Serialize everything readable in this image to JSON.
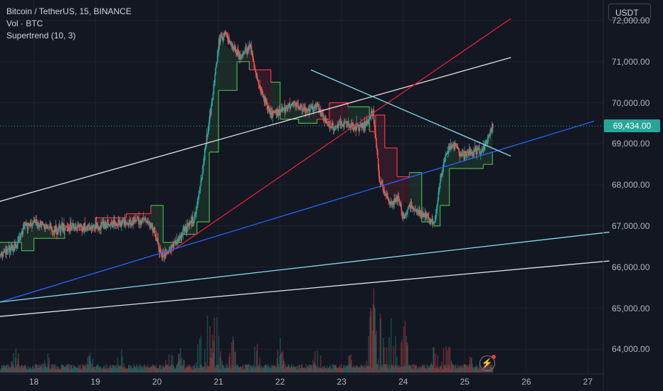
{
  "legend": {
    "symbol": "Bitcoin / TetherUS, 15, BINANCE",
    "volume": "Vol · BTC",
    "indicator": "Supertrend (10, 3)"
  },
  "currency_button": "USDT",
  "last_price_label": "69,434.00",
  "price_axis_labels": [
    "72,000.00",
    "71,000.00",
    "70,000.00",
    "69,000.00",
    "68,000.00",
    "67,000.00",
    "66,000.00",
    "65,000.00",
    "64,000.00"
  ],
  "time_axis_labels": [
    "18",
    "19",
    "20",
    "21",
    "22",
    "23",
    "24",
    "25",
    "26",
    "27"
  ],
  "colors": {
    "background": "#131722",
    "up": "#26a69a",
    "down": "#ef5350",
    "supertrend_up": "#4caf50",
    "supertrend_down": "#f23645",
    "trend_red": "#e91e3c",
    "trend_blue": "#2962ff",
    "trend_cyan": "#80deea",
    "trend_white": "#e0e0e0"
  },
  "chart_data": {
    "type": "candlestick",
    "ylim": [
      63400,
      72500
    ],
    "xlim": [
      17.45,
      27.25
    ],
    "last_price": 69434,
    "price_path": [
      [
        17.45,
        66300
      ],
      [
        17.7,
        66500
      ],
      [
        17.85,
        67000
      ],
      [
        18.0,
        67100
      ],
      [
        18.3,
        66900
      ],
      [
        18.6,
        67000
      ],
      [
        18.9,
        66950
      ],
      [
        19.2,
        67050
      ],
      [
        19.5,
        67100
      ],
      [
        19.8,
        67150
      ],
      [
        19.95,
        66900
      ],
      [
        20.05,
        66300
      ],
      [
        20.15,
        66350
      ],
      [
        20.3,
        66600
      ],
      [
        20.5,
        67000
      ],
      [
        20.6,
        67200
      ],
      [
        20.7,
        68000
      ],
      [
        20.8,
        69200
      ],
      [
        20.9,
        70200
      ],
      [
        21.0,
        71500
      ],
      [
        21.1,
        71700
      ],
      [
        21.2,
        71400
      ],
      [
        21.35,
        71100
      ],
      [
        21.5,
        71400
      ],
      [
        21.6,
        70700
      ],
      [
        21.7,
        70200
      ],
      [
        21.85,
        69700
      ],
      [
        22.0,
        69800
      ],
      [
        22.2,
        70000
      ],
      [
        22.4,
        69800
      ],
      [
        22.6,
        69900
      ],
      [
        22.7,
        69600
      ],
      [
        22.85,
        69400
      ],
      [
        23.0,
        69500
      ],
      [
        23.2,
        69400
      ],
      [
        23.4,
        69500
      ],
      [
        23.5,
        69800
      ],
      [
        23.6,
        68200
      ],
      [
        23.7,
        67800
      ],
      [
        23.8,
        67500
      ],
      [
        23.9,
        67700
      ],
      [
        24.0,
        67200
      ],
      [
        24.1,
        67500
      ],
      [
        24.25,
        67300
      ],
      [
        24.4,
        67200
      ],
      [
        24.5,
        67100
      ],
      [
        24.6,
        68200
      ],
      [
        24.7,
        68800
      ],
      [
        24.8,
        69000
      ],
      [
        24.95,
        68700
      ],
      [
        25.1,
        68800
      ],
      [
        25.3,
        68850
      ],
      [
        25.45,
        69434
      ]
    ],
    "volume_btc_peaks": [
      [
        17.7,
        900
      ],
      [
        18.2,
        700
      ],
      [
        18.9,
        700
      ],
      [
        19.4,
        800
      ],
      [
        20.2,
        1000
      ],
      [
        20.4,
        1100
      ],
      [
        20.7,
        1400
      ],
      [
        20.85,
        2600
      ],
      [
        20.95,
        2200
      ],
      [
        21.2,
        1600
      ],
      [
        21.6,
        1400
      ],
      [
        22.0,
        1200
      ],
      [
        22.6,
        1100
      ],
      [
        23.1,
        1000
      ],
      [
        23.5,
        2900
      ],
      [
        23.6,
        2400
      ],
      [
        23.8,
        2500
      ],
      [
        24.0,
        2000
      ],
      [
        24.5,
        900
      ],
      [
        24.7,
        1300
      ],
      [
        25.1,
        600
      ],
      [
        25.4,
        400
      ]
    ],
    "supertrend": [
      [
        17.45,
        66600,
        "up"
      ],
      [
        17.8,
        66400,
        "up"
      ],
      [
        18.0,
        66700,
        "up"
      ],
      [
        18.5,
        66900,
        "up"
      ],
      [
        19.0,
        67200,
        "down"
      ],
      [
        19.5,
        67300,
        "down"
      ],
      [
        19.9,
        67500,
        "down"
      ],
      [
        20.1,
        66600,
        "up"
      ],
      [
        20.4,
        66800,
        "up"
      ],
      [
        20.65,
        67100,
        "up"
      ],
      [
        20.85,
        68800,
        "up"
      ],
      [
        21.0,
        70300,
        "up"
      ],
      [
        21.3,
        71000,
        "up"
      ],
      [
        21.5,
        70800,
        "up"
      ],
      [
        21.65,
        70800,
        "down"
      ],
      [
        21.85,
        70500,
        "down"
      ],
      [
        22.0,
        69600,
        "up"
      ],
      [
        22.3,
        69500,
        "up"
      ],
      [
        22.6,
        69600,
        "up"
      ],
      [
        22.8,
        70000,
        "down"
      ],
      [
        23.1,
        69900,
        "down"
      ],
      [
        23.45,
        69300,
        "up"
      ],
      [
        23.55,
        69700,
        "down"
      ],
      [
        23.7,
        68900,
        "down"
      ],
      [
        23.9,
        68200,
        "down"
      ],
      [
        24.1,
        68300,
        "down"
      ],
      [
        24.3,
        67100,
        "up"
      ],
      [
        24.5,
        67000,
        "up"
      ],
      [
        24.6,
        67500,
        "up"
      ],
      [
        24.75,
        68400,
        "up"
      ],
      [
        25.0,
        68400,
        "up"
      ],
      [
        25.3,
        68500,
        "up"
      ],
      [
        25.45,
        68800,
        "up"
      ]
    ],
    "trendlines": [
      {
        "color": "white",
        "points": [
          [
            17.45,
            67600
          ],
          [
            25.75,
            71100
          ]
        ]
      },
      {
        "color": "red",
        "points": [
          [
            20.15,
            66300
          ],
          [
            25.75,
            72050
          ]
        ]
      },
      {
        "color": "blue",
        "points": [
          [
            17.45,
            65150
          ],
          [
            27.1,
            69550
          ]
        ]
      },
      {
        "color": "cyan",
        "points": [
          [
            17.45,
            65150
          ],
          [
            27.35,
            66850
          ]
        ]
      },
      {
        "color": "white",
        "points": [
          [
            17.45,
            64800
          ],
          [
            27.35,
            66150
          ]
        ]
      },
      {
        "color": "cyan",
        "points": [
          [
            22.5,
            70800
          ],
          [
            25.75,
            68700
          ]
        ]
      }
    ]
  }
}
